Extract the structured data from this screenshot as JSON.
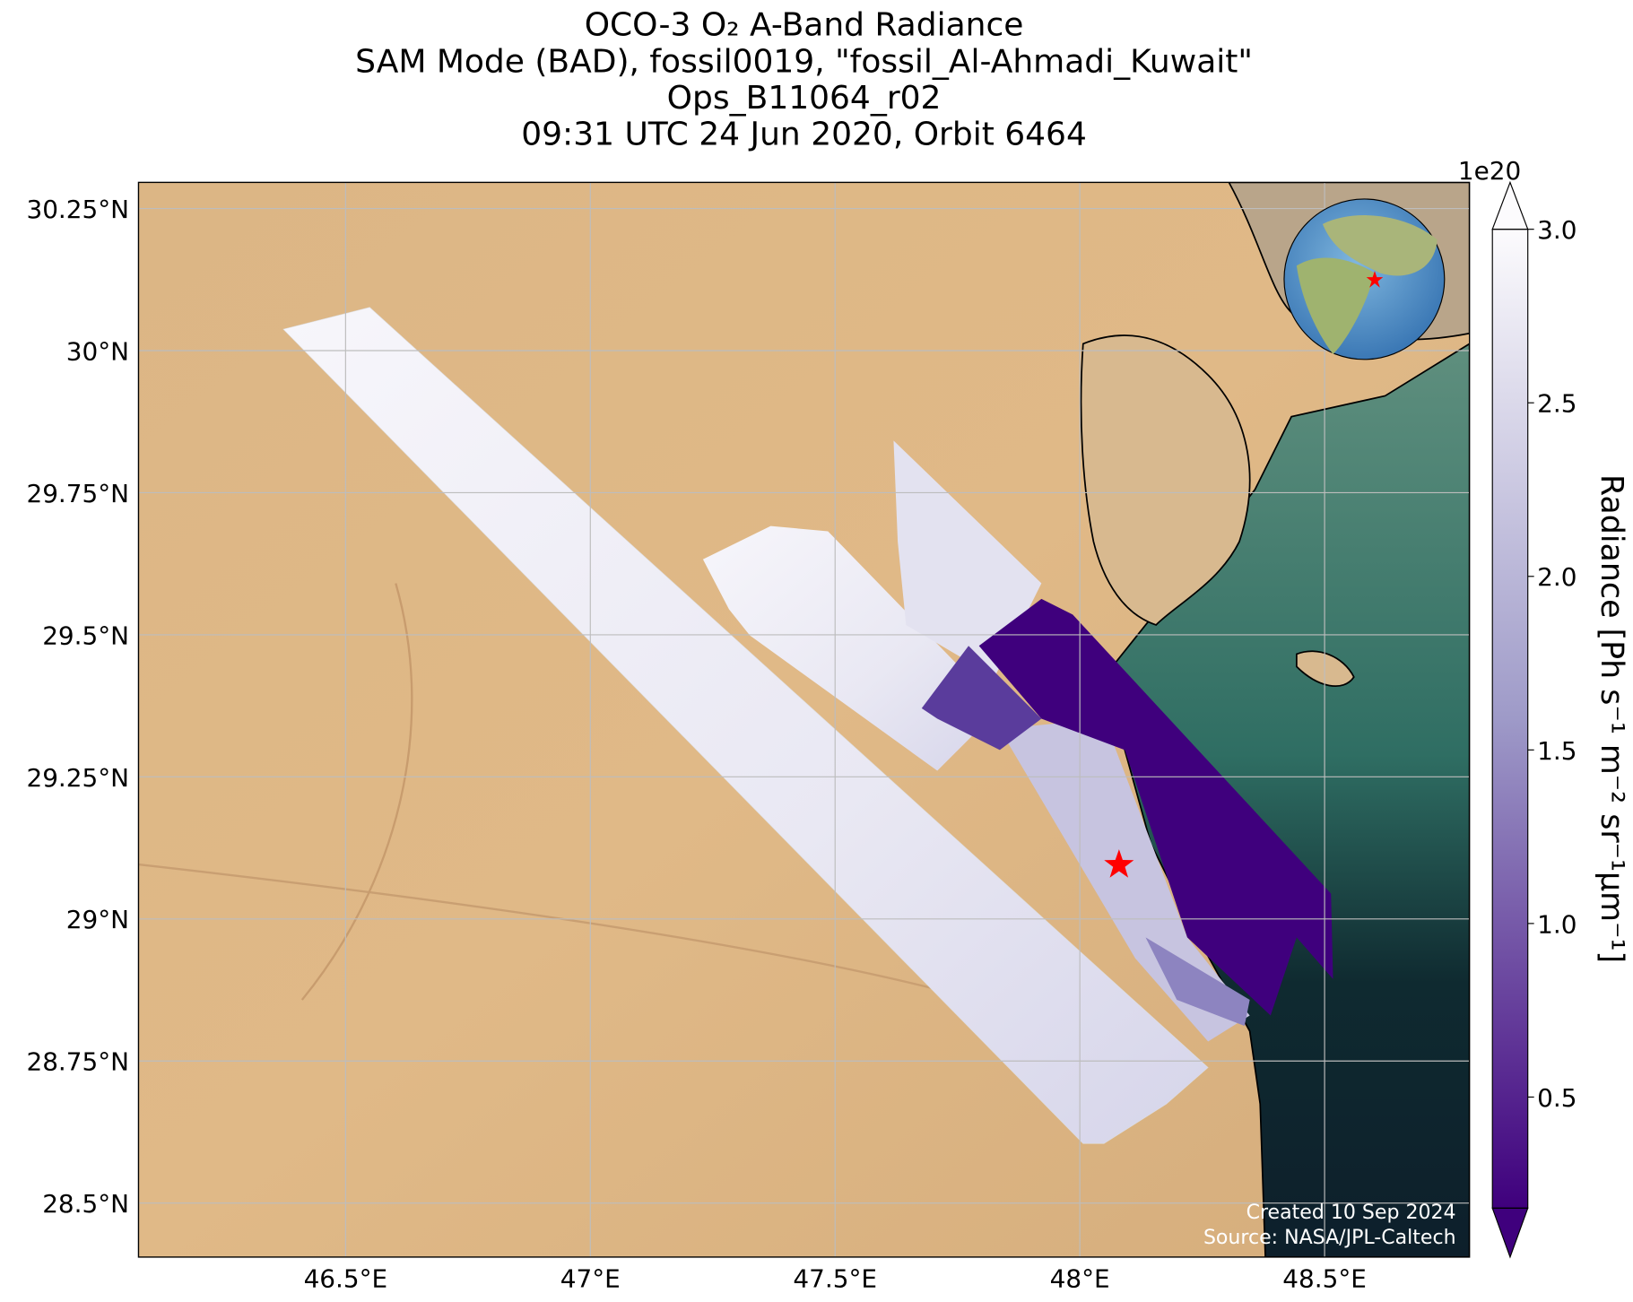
{
  "chart_data": {
    "type": "map",
    "title": [
      "OCO-3 O₂ A-Band Radiance",
      "SAM Mode (BAD), fossil0019, \"fossil_Al-Ahmadi_Kuwait\"",
      "Ops_B11064_r02",
      "09:31 UTC 24 Jun 2020, Orbit 6464"
    ],
    "xlim": [
      46.077,
      48.796
    ],
    "ylim": [
      28.405,
      30.296
    ],
    "xticks": [
      {
        "value": 46.5,
        "label": "46.5°E"
      },
      {
        "value": 47,
        "label": "47°E"
      },
      {
        "value": 47.5,
        "label": "47.5°E"
      },
      {
        "value": 48,
        "label": "48°E"
      },
      {
        "value": 48.5,
        "label": "48.5°E"
      }
    ],
    "yticks": [
      {
        "value": 28.5,
        "label": "28.5°N"
      },
      {
        "value": 28.75,
        "label": "28.75°N"
      },
      {
        "value": 29,
        "label": "29°N"
      },
      {
        "value": 29.25,
        "label": "29.25°N"
      },
      {
        "value": 29.5,
        "label": "29.5°N"
      },
      {
        "value": 29.75,
        "label": "29.75°N"
      },
      {
        "value": 30,
        "label": "30°N"
      },
      {
        "value": 30.25,
        "label": "30.25°N"
      }
    ],
    "grid": true,
    "site": {
      "lon": 48.08,
      "lat": 29.095,
      "color": "#ff0000"
    },
    "colorbar": {
      "label": "Radiance [Ph s⁻¹ m⁻² sr⁻¹μm⁻¹]",
      "exponent_label": "1e20",
      "lim": [
        0.18,
        3.0
      ],
      "ticks": [
        0.5,
        {
          "value": 1,
          "label": "1.0"
        },
        1.5,
        {
          "value": 2,
          "label": "2.0"
        },
        2.5,
        {
          "value": 3,
          "label": "3.0"
        }
      ],
      "colors": [
        "#3f007d",
        "#fcfbfd"
      ]
    },
    "credits": [
      "Created 10 Sep 2024",
      "Source: NASA/JPL-Caltech"
    ]
  }
}
